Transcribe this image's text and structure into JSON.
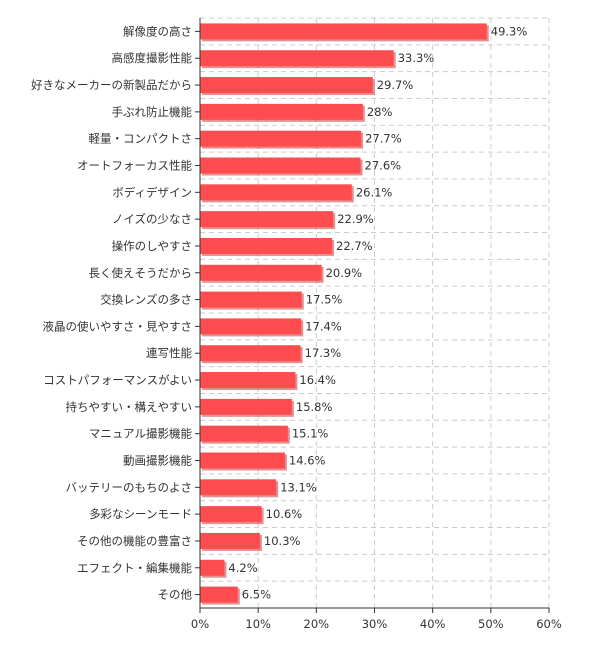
{
  "chart_data": {
    "type": "bar",
    "orientation": "horizontal",
    "categories": [
      "解像度の高さ",
      "高感度撮影性能",
      "好きなメーカーの新製品だから",
      "手ぶれ防止機能",
      "軽量・コンパクトさ",
      "オートフォーカス性能",
      "ボディデザイン",
      "ノイズの少なさ",
      "操作のしやすさ",
      "長く使えそうだから",
      "交換レンズの多さ",
      "液晶の使いやすさ・見やすさ",
      "連写性能",
      "コストパフォーマンスがよい",
      "持ちやすい・構えやすい",
      "マニュアル撮影機能",
      "動画撮影機能",
      "バッテリーのもちのよさ",
      "多彩なシーンモード",
      "その他の機能の豊富さ",
      "エフェクト・編集機能",
      "その他"
    ],
    "values": [
      49.3,
      33.3,
      29.7,
      28,
      27.7,
      27.6,
      26.1,
      22.9,
      22.7,
      20.9,
      17.5,
      17.4,
      17.3,
      16.4,
      15.8,
      15.1,
      14.6,
      13.1,
      10.6,
      10.3,
      4.2,
      6.5
    ],
    "value_labels": [
      "49.3%",
      "33.3%",
      "29.7%",
      "28%",
      "27.7%",
      "27.6%",
      "26.1%",
      "22.9%",
      "22.7%",
      "20.9%",
      "17.5%",
      "17.4%",
      "17.3%",
      "16.4%",
      "15.8%",
      "15.1%",
      "14.6%",
      "13.1%",
      "10.6%",
      "10.3%",
      "4.2%",
      "6.5%"
    ],
    "xlim": [
      0,
      60
    ],
    "xticks": [
      0,
      10,
      20,
      30,
      40,
      50,
      60
    ],
    "xtick_labels": [
      "0%",
      "10%",
      "20%",
      "30%",
      "40%",
      "50%",
      "60%"
    ],
    "grid": true,
    "bar_color": "#ff4d4f",
    "bar_shadow_color": "#c53a3a"
  }
}
